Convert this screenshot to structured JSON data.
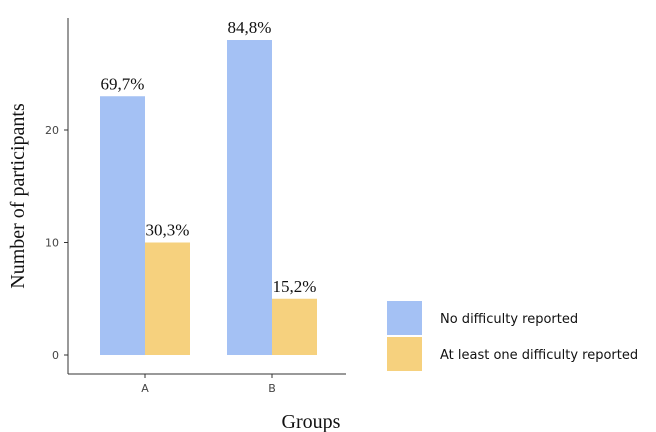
{
  "chart_data": {
    "type": "bar",
    "title": "",
    "xlabel": "Groups",
    "ylabel": "Number of participants",
    "categories": [
      "A",
      "B"
    ],
    "ylim": [
      0,
      30.5
    ],
    "yticks": [
      0,
      10,
      20
    ],
    "grid": false,
    "legend_position": "right",
    "series": [
      {
        "name": "No difficulty reported",
        "color": "#a4c1f4",
        "values": [
          23,
          28
        ],
        "labels": [
          "69,7%",
          "84,8%"
        ]
      },
      {
        "name": "At least one difficulty reported",
        "color": "#f6d17e",
        "values": [
          10,
          5
        ],
        "labels": [
          "30,3%",
          "15,2%"
        ]
      }
    ]
  }
}
